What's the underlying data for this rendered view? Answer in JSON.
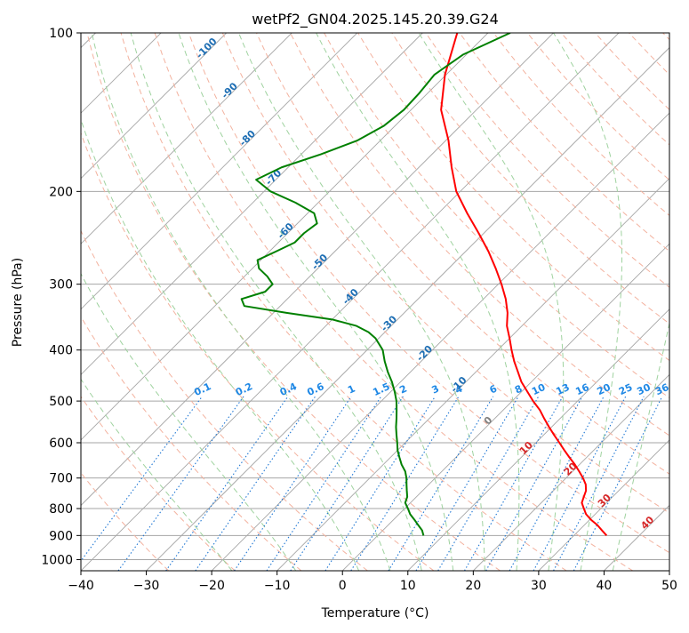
{
  "chart_data": {
    "type": "line",
    "title": "wetPf2_GN04.2025.145.20.39.G24",
    "xlabel": "Temperature (°C)",
    "ylabel": "Pressure (hPa)",
    "xlim": [
      -40,
      50
    ],
    "ylim": [
      1050,
      100
    ],
    "y_scale": "log",
    "grid": true,
    "x_ticks": [
      "−40",
      "−30",
      "−20",
      "−10",
      "0",
      "10",
      "20",
      "30",
      "40",
      "50"
    ],
    "y_ticks": [
      "100",
      "200",
      "300",
      "400",
      "500",
      "600",
      "700",
      "800",
      "900",
      "1000"
    ],
    "isotherm_skew": "45-degree",
    "series": [
      {
        "color": "#ff0000",
        "points": [
          [
            1000,
            null
          ],
          [
            900,
            35.0
          ],
          [
            880,
            33.5
          ],
          [
            860,
            32.0
          ],
          [
            840,
            30.2
          ],
          [
            820,
            28.6
          ],
          [
            800,
            27.4
          ],
          [
            780,
            26.2
          ],
          [
            760,
            25.6
          ],
          [
            740,
            25.0
          ],
          [
            720,
            24.0
          ],
          [
            700,
            22.6
          ],
          [
            680,
            21.0
          ],
          [
            660,
            19.3
          ],
          [
            640,
            17.4
          ],
          [
            620,
            15.5
          ],
          [
            600,
            13.6
          ],
          [
            580,
            11.6
          ],
          [
            560,
            9.6
          ],
          [
            540,
            7.6
          ],
          [
            520,
            5.6
          ],
          [
            500,
            3.2
          ],
          [
            480,
            0.9
          ],
          [
            460,
            -1.5
          ],
          [
            440,
            -3.6
          ],
          [
            420,
            -5.8
          ],
          [
            400,
            -7.9
          ],
          [
            380,
            -10.0
          ],
          [
            360,
            -12.3
          ],
          [
            340,
            -14.2
          ],
          [
            320,
            -16.6
          ],
          [
            300,
            -19.5
          ],
          [
            280,
            -22.8
          ],
          [
            260,
            -26.5
          ],
          [
            240,
            -30.8
          ],
          [
            220,
            -35.6
          ],
          [
            200,
            -40.6
          ],
          [
            180,
            -45.0
          ],
          [
            160,
            -49.6
          ],
          [
            140,
            -55.4
          ],
          [
            120,
            -60.2
          ],
          [
            100,
            -64.7
          ]
        ]
      },
      {
        "color": "#008000",
        "points": [
          [
            900,
            7.0
          ],
          [
            880,
            6.0
          ],
          [
            860,
            4.6
          ],
          [
            840,
            3.2
          ],
          [
            820,
            1.7
          ],
          [
            800,
            0.5
          ],
          [
            780,
            -0.8
          ],
          [
            760,
            -1.4
          ],
          [
            740,
            -2.4
          ],
          [
            720,
            -3.4
          ],
          [
            700,
            -4.4
          ],
          [
            680,
            -5.6
          ],
          [
            660,
            -7.2
          ],
          [
            640,
            -8.6
          ],
          [
            620,
            -10.0
          ],
          [
            600,
            -11.2
          ],
          [
            580,
            -12.5
          ],
          [
            560,
            -13.8
          ],
          [
            540,
            -15.0
          ],
          [
            520,
            -16.3
          ],
          [
            500,
            -17.7
          ],
          [
            480,
            -19.4
          ],
          [
            460,
            -21.3
          ],
          [
            440,
            -23.5
          ],
          [
            420,
            -25.6
          ],
          [
            400,
            -27.6
          ],
          [
            380,
            -30.5
          ],
          [
            370,
            -32.5
          ],
          [
            360,
            -35.3
          ],
          [
            350,
            -40.0
          ],
          [
            340,
            -48.0
          ],
          [
            330,
            -55.5
          ],
          [
            320,
            -57.0
          ],
          [
            310,
            -54.5
          ],
          [
            300,
            -54.5
          ],
          [
            290,
            -56.5
          ],
          [
            280,
            -59.0
          ],
          [
            270,
            -60.5
          ],
          [
            260,
            -59.0
          ],
          [
            250,
            -57.5
          ],
          [
            240,
            -57.5
          ],
          [
            230,
            -57.0
          ],
          [
            220,
            -59.0
          ],
          [
            210,
            -63.5
          ],
          [
            200,
            -69.0
          ],
          [
            190,
            -73.0
          ],
          [
            180,
            -71.0
          ],
          [
            170,
            -67.0
          ],
          [
            160,
            -63.5
          ],
          [
            150,
            -61.7
          ],
          [
            140,
            -61.1
          ],
          [
            130,
            -61.3
          ],
          [
            120,
            -61.8
          ],
          [
            110,
            -60.5
          ],
          [
            100,
            -56.6
          ]
        ]
      }
    ],
    "background_lines": {
      "isotherm_step": 10,
      "dry_adiabat_color": "#f3b29f",
      "moist_adiabat_color": "#9fd29f",
      "mixing_ratio_color": "#1f77d4",
      "isobar_color": "#a6a6a6",
      "isotherm_color": "#a6a6a6"
    },
    "mixing_ratio_labels": [
      "0.1",
      "0.2",
      "0.4",
      "0.6",
      "1",
      "1.5",
      "2",
      "3",
      "4",
      "6",
      "8",
      "10",
      "13",
      "16",
      "20",
      "25",
      "30",
      "36"
    ],
    "mixing_ratio_values": [
      0.1,
      0.2,
      0.4,
      0.6,
      1,
      1.5,
      2,
      3,
      4,
      6,
      8,
      10,
      13,
      16,
      20,
      25,
      30,
      36
    ],
    "blue_labels": [
      "-100",
      "-90",
      "-80",
      "-70",
      "-60",
      "-50",
      "-40",
      "-30",
      "-20",
      "-10"
    ],
    "blue_label_points": [
      [
        108,
        -100
      ],
      [
        130,
        -90
      ],
      [
        160,
        -80
      ],
      [
        190,
        -70
      ],
      [
        240,
        -60
      ],
      [
        275,
        -50
      ],
      [
        320,
        -40
      ],
      [
        360,
        -30
      ],
      [
        410,
        -20
      ],
      [
        470,
        -10
      ]
    ],
    "gray_label": "0",
    "gray_label_point": [
      550,
      0
    ],
    "red_labels": [
      "10",
      "20",
      "30",
      "40"
    ],
    "red_label_points": [
      [
        620,
        10
      ],
      [
        680,
        20
      ],
      [
        780,
        30
      ],
      [
        860,
        40
      ]
    ],
    "colors": {
      "blue_label": "#1f6fb4",
      "red_label": "#d62728",
      "gray_label": "#808080",
      "mixing_label": "#1f88e5"
    }
  }
}
